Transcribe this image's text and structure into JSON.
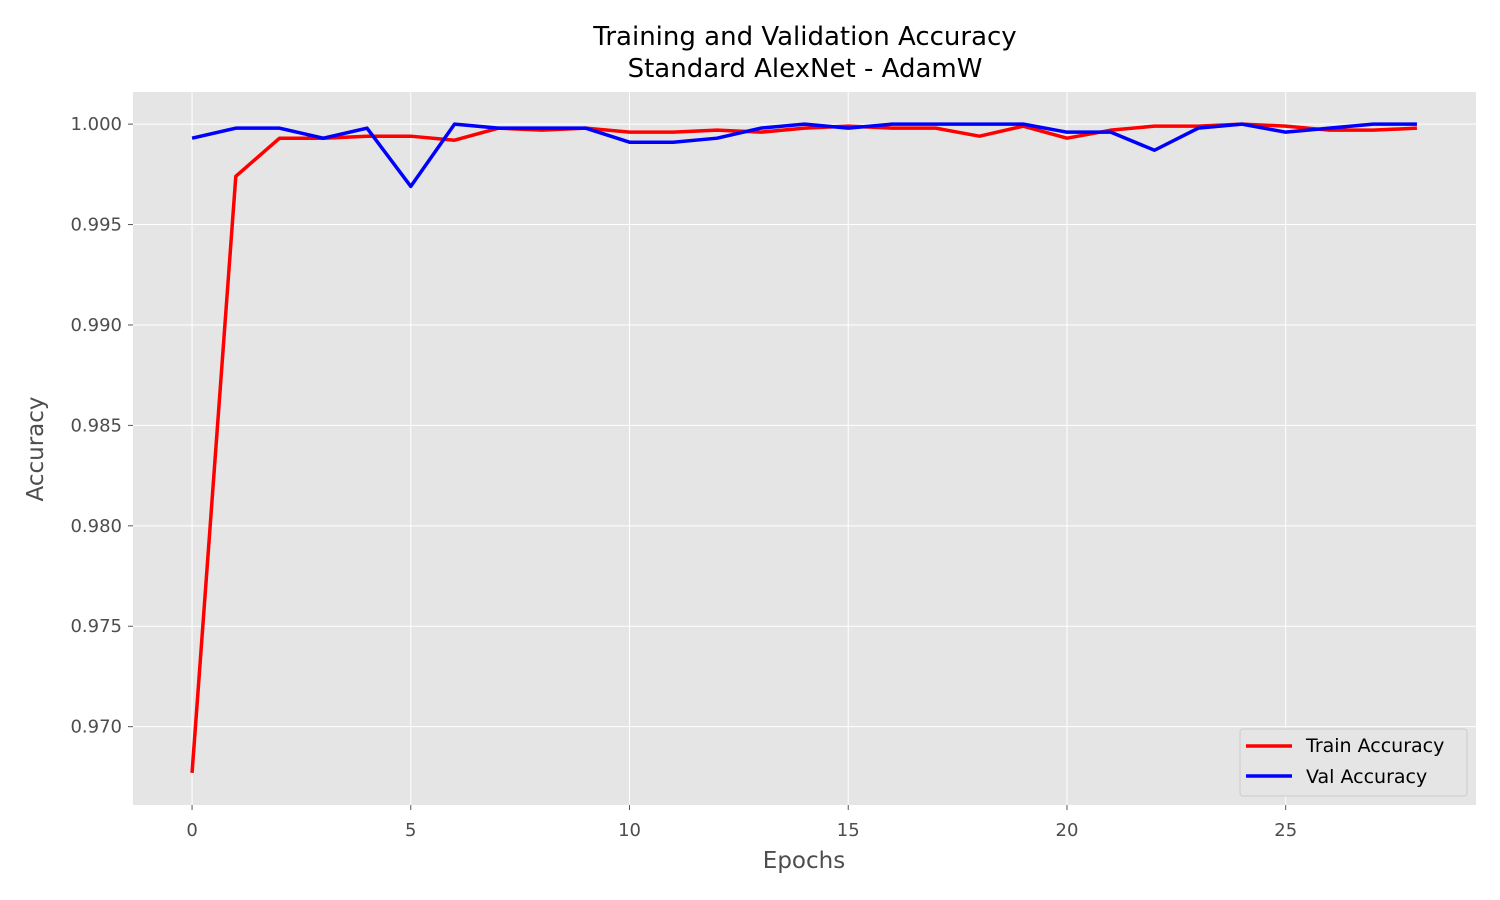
{
  "chart_data": {
    "type": "line",
    "title": "Training and Validation Accuracy",
    "subtitle": "Standard AlexNet - AdamW",
    "xlabel": "Epochs",
    "ylabel": "Accuracy",
    "xlim": [
      -1.35,
      29.35
    ],
    "ylim": [
      0.9661,
      1.0016
    ],
    "xticks": [
      0,
      5,
      10,
      15,
      20,
      25
    ],
    "xtick_labels": [
      "0",
      "5",
      "10",
      "15",
      "20",
      "25"
    ],
    "yticks": [
      0.97,
      0.975,
      0.98,
      0.985,
      0.99,
      0.995,
      1.0
    ],
    "ytick_labels": [
      "0.970",
      "0.975",
      "0.980",
      "0.985",
      "0.990",
      "0.995",
      "1.000"
    ],
    "grid": true,
    "legend_position": "lower-right",
    "x": [
      0,
      1,
      2,
      3,
      4,
      5,
      6,
      7,
      8,
      9,
      10,
      11,
      12,
      13,
      14,
      15,
      16,
      17,
      18,
      19,
      20,
      21,
      22,
      23,
      24,
      25,
      26,
      27,
      28
    ],
    "series": [
      {
        "name": "Train Accuracy",
        "color": "#ff0000",
        "values": [
          0.9677,
          0.9974,
          0.9993,
          0.9993,
          0.9994,
          0.9994,
          0.9992,
          0.9998,
          0.9997,
          0.9998,
          0.9996,
          0.9996,
          0.9997,
          0.9996,
          0.9998,
          0.9999,
          0.9998,
          0.9998,
          0.9994,
          0.9999,
          0.9993,
          0.9997,
          0.9999,
          0.9999,
          1.0,
          0.9999,
          0.9997,
          0.9997,
          0.9998
        ]
      },
      {
        "name": "Val Accuracy",
        "color": "#0000ff",
        "values": [
          0.9993,
          0.9998,
          0.9998,
          0.9993,
          0.9998,
          0.9969,
          1.0,
          0.9998,
          0.9998,
          0.9998,
          0.9991,
          0.9991,
          0.9993,
          0.9998,
          1.0,
          0.9998,
          1.0,
          1.0,
          1.0,
          1.0,
          0.9996,
          0.9996,
          0.9987,
          0.9998,
          1.0,
          0.9996,
          0.9998,
          1.0,
          1.0
        ]
      }
    ]
  }
}
